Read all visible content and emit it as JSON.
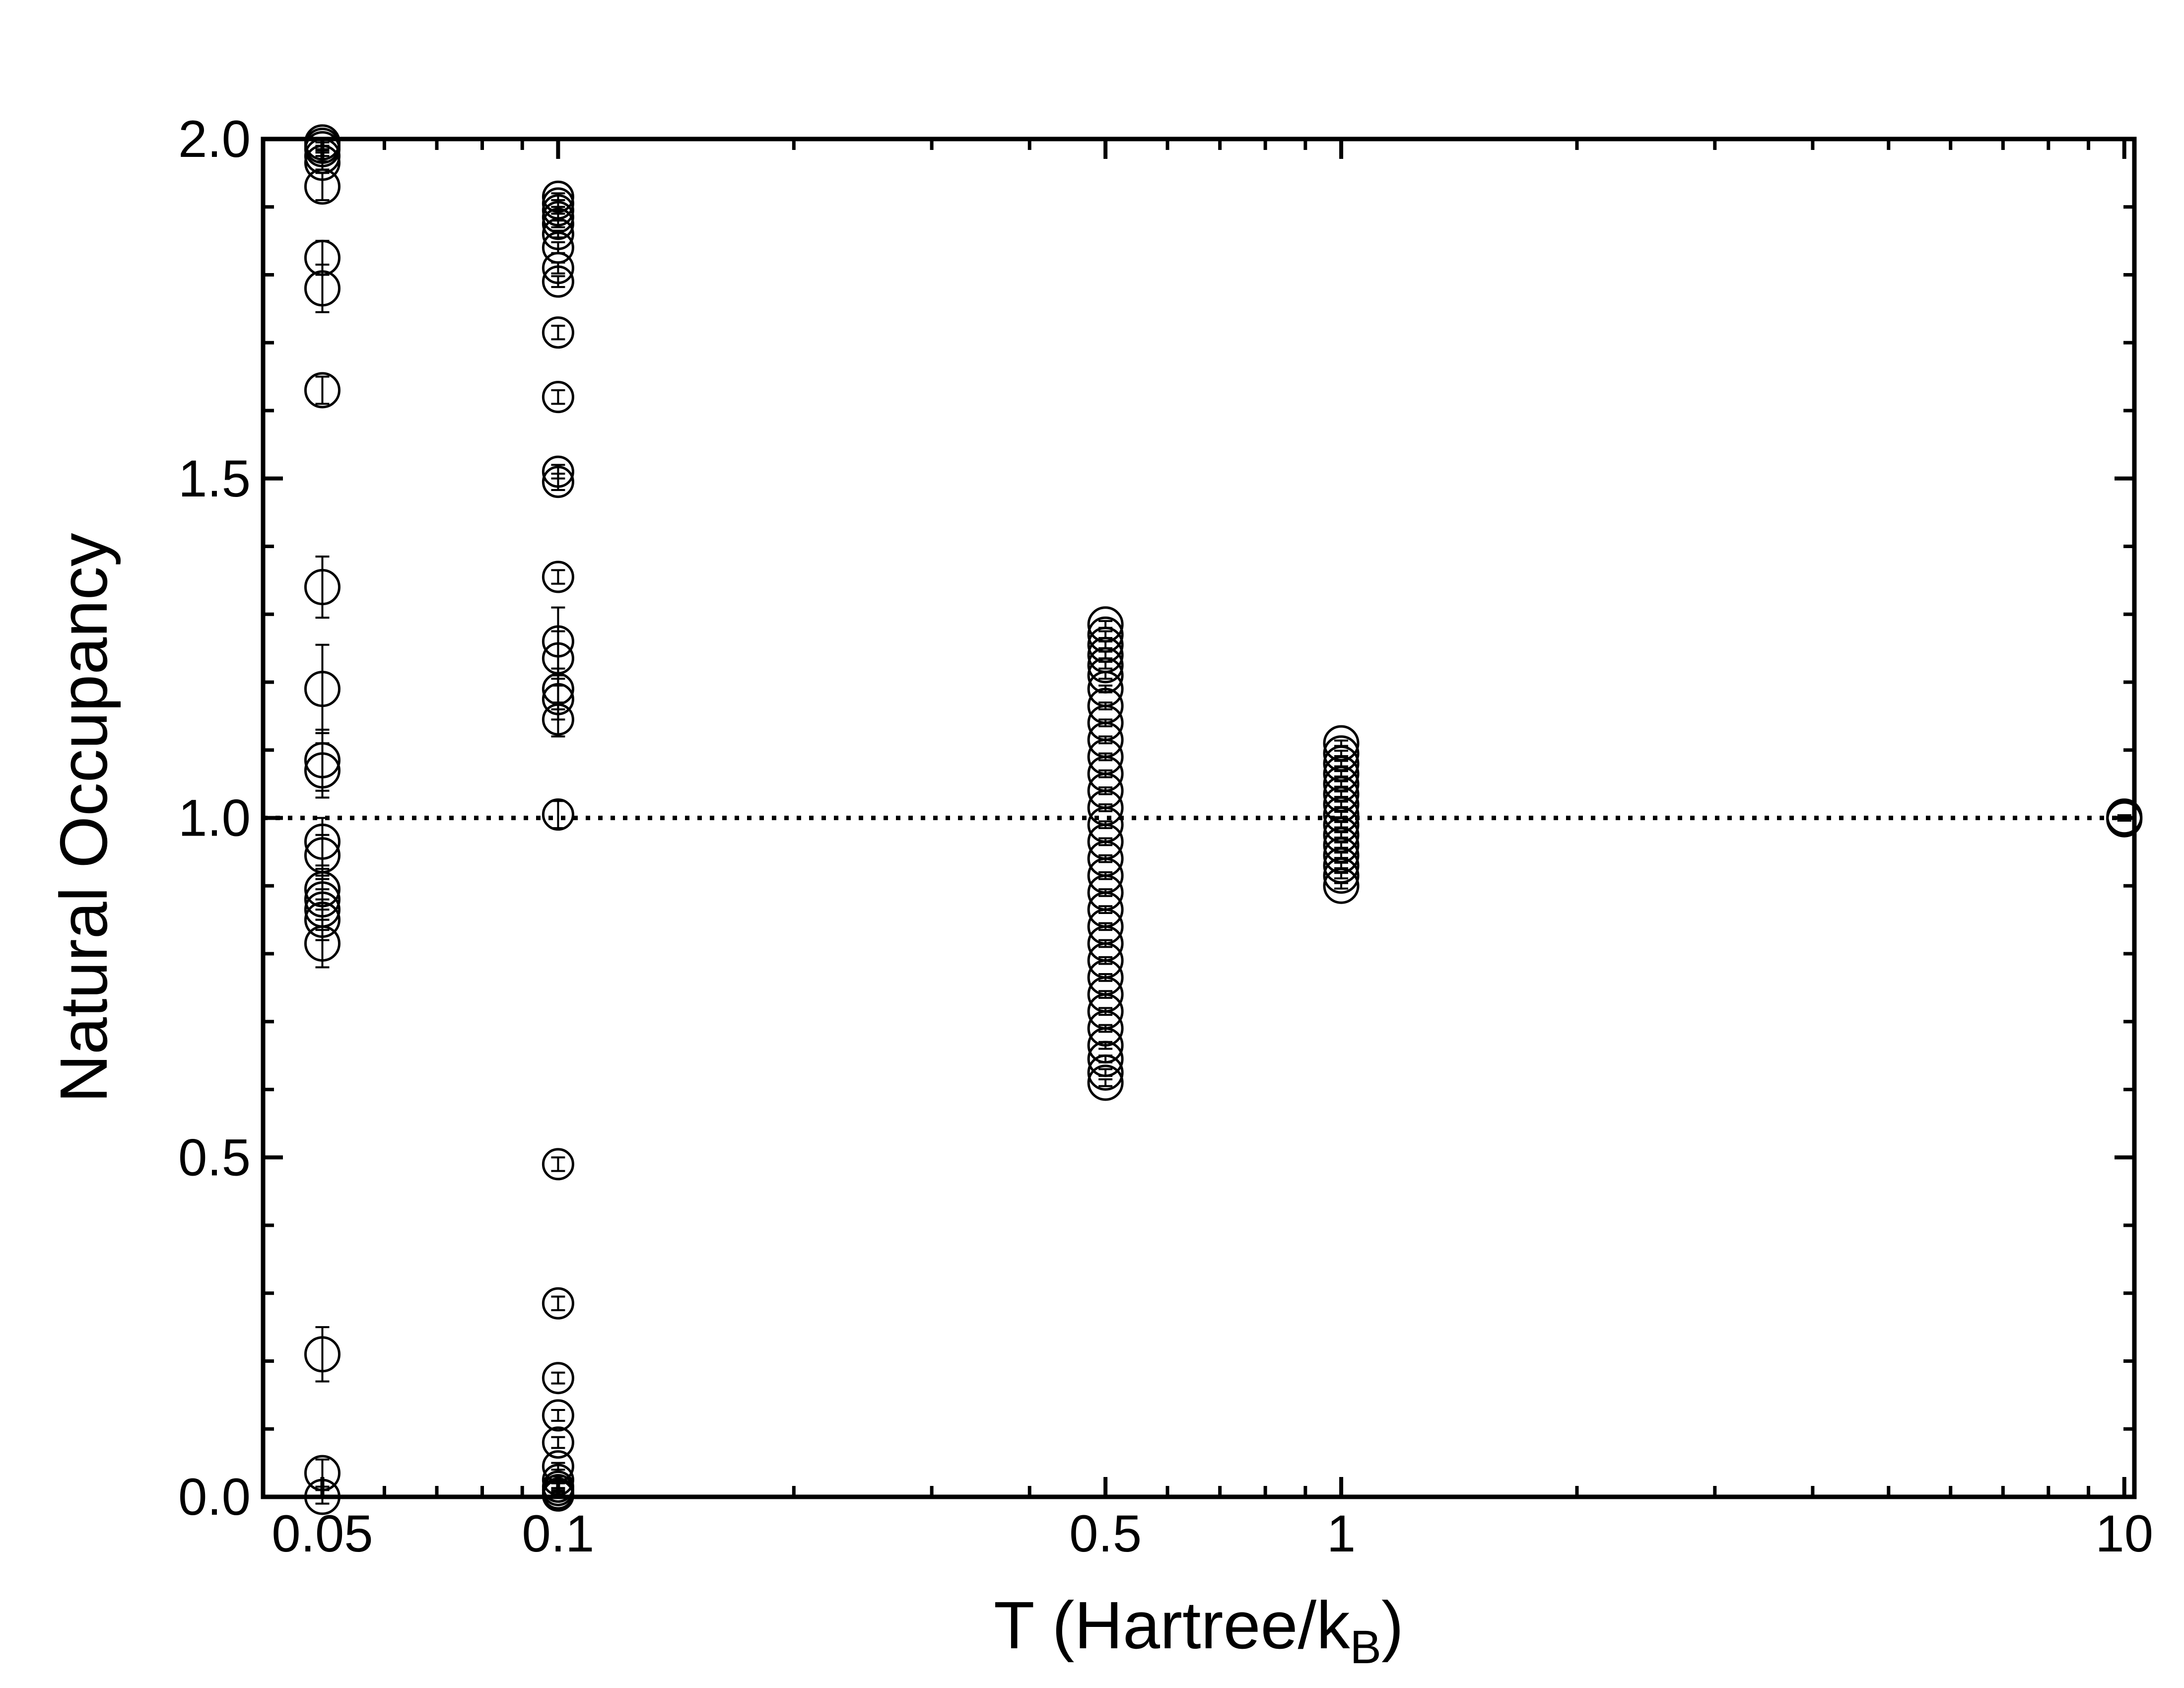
{
  "chart_data": {
    "type": "scatter",
    "title": "",
    "xlabel": "T (Hartree/k",
    "xlabel_subscript": "B",
    "xlabel_close": ")",
    "ylabel": "Natural Occupancy",
    "xscale": "log",
    "xlim": [
      0.042,
      10.3
    ],
    "ylim": [
      0.0,
      2.0
    ],
    "xticks": [
      {
        "value": 0.05,
        "label": "0.05"
      },
      {
        "value": 0.1,
        "label": "0.1"
      },
      {
        "value": 0.5,
        "label": "0.5"
      },
      {
        "value": 1,
        "label": "1"
      },
      {
        "value": 10,
        "label": "10"
      }
    ],
    "yticks": [
      {
        "value": 0.0,
        "label": "0.0"
      },
      {
        "value": 0.5,
        "label": "0.5"
      },
      {
        "value": 1.0,
        "label": "1.0"
      },
      {
        "value": 1.5,
        "label": "1.5"
      },
      {
        "value": 2.0,
        "label": "2.0"
      }
    ],
    "reference_line": {
      "y": 1.0,
      "style": "dotted"
    },
    "marker": "open-circle",
    "grid": false,
    "series": [
      {
        "x": 0.05,
        "points": [
          {
            "y": 1.995,
            "err": 0.005
          },
          {
            "y": 1.99,
            "err": 0.005
          },
          {
            "y": 1.985,
            "err": 0.005
          },
          {
            "y": 1.975,
            "err": 0.008
          },
          {
            "y": 1.965,
            "err": 0.01
          },
          {
            "y": 1.93,
            "err": 0.02
          },
          {
            "y": 1.825,
            "err": 0.025
          },
          {
            "y": 1.78,
            "err": 0.035
          },
          {
            "y": 1.63,
            "err": 0.02
          },
          {
            "y": 1.34,
            "err": 0.045
          },
          {
            "y": 1.19,
            "err": 0.065
          },
          {
            "y": 1.085,
            "err": 0.045
          },
          {
            "y": 1.07,
            "err": 0.04
          },
          {
            "y": 0.965,
            "err": 0.035
          },
          {
            "y": 0.945,
            "err": 0.03
          },
          {
            "y": 0.895,
            "err": 0.03
          },
          {
            "y": 0.88,
            "err": 0.03
          },
          {
            "y": 0.865,
            "err": 0.03
          },
          {
            "y": 0.85,
            "err": 0.03
          },
          {
            "y": 0.815,
            "err": 0.035
          },
          {
            "y": 0.21,
            "err": 0.04
          },
          {
            "y": 0.035,
            "err": 0.02
          },
          {
            "y": 0.0,
            "err": 0.01
          }
        ]
      },
      {
        "x": 0.1,
        "points": [
          {
            "y": 1.915,
            "err": 0.005
          },
          {
            "y": 1.905,
            "err": 0.005
          },
          {
            "y": 1.895,
            "err": 0.005
          },
          {
            "y": 1.885,
            "err": 0.005
          },
          {
            "y": 1.875,
            "err": 0.005
          },
          {
            "y": 1.86,
            "err": 0.005
          },
          {
            "y": 1.84,
            "err": 0.008
          },
          {
            "y": 1.81,
            "err": 0.008
          },
          {
            "y": 1.79,
            "err": 0.008
          },
          {
            "y": 1.715,
            "err": 0.01
          },
          {
            "y": 1.62,
            "err": 0.01
          },
          {
            "y": 1.51,
            "err": 0.01
          },
          {
            "y": 1.495,
            "err": 0.012
          },
          {
            "y": 1.355,
            "err": 0.01
          },
          {
            "y": 1.26,
            "err": 0.05
          },
          {
            "y": 1.235,
            "err": 0.04
          },
          {
            "y": 1.19,
            "err": 0.03
          },
          {
            "y": 1.175,
            "err": 0.03
          },
          {
            "y": 1.145,
            "err": 0.025
          },
          {
            "y": 1.005,
            "err": 0.02
          },
          {
            "y": 0.49,
            "err": 0.01
          },
          {
            "y": 0.285,
            "err": 0.01
          },
          {
            "y": 0.175,
            "err": 0.008
          },
          {
            "y": 0.12,
            "err": 0.008
          },
          {
            "y": 0.08,
            "err": 0.008
          },
          {
            "y": 0.045,
            "err": 0.005
          },
          {
            "y": 0.025,
            "err": 0.005
          },
          {
            "y": 0.015,
            "err": 0.005
          },
          {
            "y": 0.01,
            "err": 0.003
          },
          {
            "y": 0.005,
            "err": 0.003
          },
          {
            "y": 0.002,
            "err": 0.002
          }
        ]
      },
      {
        "x": 0.5,
        "points": [
          {
            "y": 1.285,
            "err": 0.005
          },
          {
            "y": 1.27,
            "err": 0.005
          },
          {
            "y": 1.255,
            "err": 0.005
          },
          {
            "y": 1.24,
            "err": 0.005
          },
          {
            "y": 1.225,
            "err": 0.005
          },
          {
            "y": 1.21,
            "err": 0.005
          },
          {
            "y": 1.19,
            "err": 0.005
          },
          {
            "y": 1.165,
            "err": 0.005
          },
          {
            "y": 1.14,
            "err": 0.005
          },
          {
            "y": 1.115,
            "err": 0.005
          },
          {
            "y": 1.09,
            "err": 0.005
          },
          {
            "y": 1.065,
            "err": 0.005
          },
          {
            "y": 1.04,
            "err": 0.005
          },
          {
            "y": 1.015,
            "err": 0.005
          },
          {
            "y": 0.99,
            "err": 0.005
          },
          {
            "y": 0.965,
            "err": 0.005
          },
          {
            "y": 0.94,
            "err": 0.005
          },
          {
            "y": 0.915,
            "err": 0.005
          },
          {
            "y": 0.89,
            "err": 0.005
          },
          {
            "y": 0.865,
            "err": 0.005
          },
          {
            "y": 0.84,
            "err": 0.005
          },
          {
            "y": 0.815,
            "err": 0.005
          },
          {
            "y": 0.79,
            "err": 0.005
          },
          {
            "y": 0.765,
            "err": 0.005
          },
          {
            "y": 0.74,
            "err": 0.005
          },
          {
            "y": 0.715,
            "err": 0.005
          },
          {
            "y": 0.69,
            "err": 0.005
          },
          {
            "y": 0.665,
            "err": 0.005
          },
          {
            "y": 0.645,
            "err": 0.005
          },
          {
            "y": 0.625,
            "err": 0.005
          },
          {
            "y": 0.61,
            "err": 0.005
          }
        ]
      },
      {
        "x": 1,
        "points": [
          {
            "y": 1.11,
            "err": 0.004
          },
          {
            "y": 1.095,
            "err": 0.004
          },
          {
            "y": 1.08,
            "err": 0.004
          },
          {
            "y": 1.065,
            "err": 0.004
          },
          {
            "y": 1.05,
            "err": 0.004
          },
          {
            "y": 1.035,
            "err": 0.004
          },
          {
            "y": 1.02,
            "err": 0.004
          },
          {
            "y": 1.005,
            "err": 0.004
          },
          {
            "y": 0.99,
            "err": 0.004
          },
          {
            "y": 0.975,
            "err": 0.004
          },
          {
            "y": 0.96,
            "err": 0.004
          },
          {
            "y": 0.945,
            "err": 0.004
          },
          {
            "y": 0.93,
            "err": 0.004
          },
          {
            "y": 0.915,
            "err": 0.004
          },
          {
            "y": 0.9,
            "err": 0.004
          }
        ]
      },
      {
        "x": 10,
        "points": [
          {
            "y": 1.002,
            "err": 0.002
          },
          {
            "y": 1.0,
            "err": 0.002
          },
          {
            "y": 0.998,
            "err": 0.002
          }
        ]
      }
    ]
  }
}
